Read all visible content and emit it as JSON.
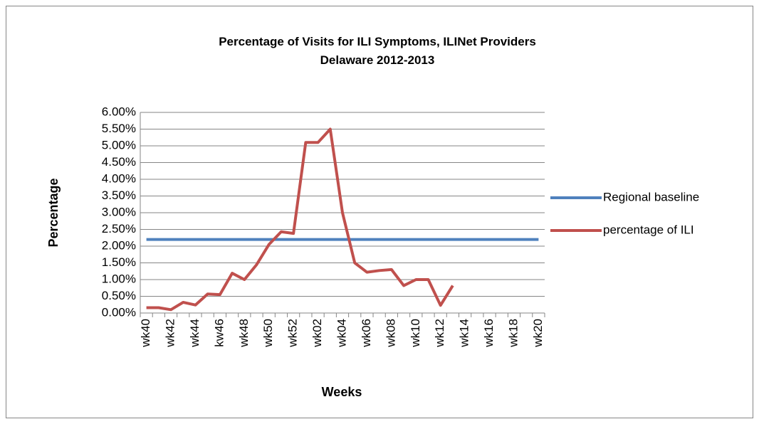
{
  "chart_data": {
    "type": "line",
    "title": [
      "Percentage of Visits for ILI Symptoms, ILINet Providers",
      "Delaware 2012-2013"
    ],
    "x_label": "Weeks",
    "y_label": "Percentage",
    "categories": [
      "wk40",
      null,
      "wk42",
      null,
      "wk44",
      null,
      "kw46",
      null,
      "wk48",
      null,
      "wk50",
      null,
      "wk52",
      null,
      "wk02",
      null,
      "wk04",
      null,
      "wk06",
      null,
      "wk08",
      null,
      "wk10",
      null,
      "wk12",
      null,
      "wk14",
      null,
      "wk16",
      null,
      "wk18",
      null,
      "wk20"
    ],
    "series": [
      {
        "name": "Regional baseline",
        "color": "#4f81bd",
        "values": [
          2.2,
          2.2,
          2.2,
          2.2,
          2.2,
          2.2,
          2.2,
          2.2,
          2.2,
          2.2,
          2.2,
          2.2,
          2.2,
          2.2,
          2.2,
          2.2,
          2.2,
          2.2,
          2.2,
          2.2,
          2.2,
          2.2,
          2.2,
          2.2,
          2.2,
          2.2,
          2.2,
          2.2,
          2.2,
          2.2,
          2.2,
          2.2,
          2.2
        ]
      },
      {
        "name": "percentage of ILI",
        "color": "#c0504d",
        "values": [
          0.16,
          0.16,
          0.1,
          0.32,
          0.24,
          0.57,
          0.55,
          1.19,
          1.0,
          1.45,
          2.05,
          2.43,
          2.38,
          5.1,
          5.1,
          5.5,
          3.0,
          1.5,
          1.22,
          1.27,
          1.3,
          0.82,
          1.0,
          1.0,
          0.23,
          0.82,
          null,
          null,
          null,
          null,
          null,
          null,
          null
        ]
      }
    ],
    "ylim": [
      0,
      6
    ],
    "yticks": [
      {
        "value": 0,
        "label": "0.00%"
      },
      {
        "value": 0.5,
        "label": "0.50%"
      },
      {
        "value": 1,
        "label": "1.00%"
      },
      {
        "value": 1.5,
        "label": "1.50%"
      },
      {
        "value": 2,
        "label": "2.00%"
      },
      {
        "value": 2.5,
        "label": "2.50%"
      },
      {
        "value": 3,
        "label": "3.00%"
      },
      {
        "value": 3.5,
        "label": "3.50%"
      },
      {
        "value": 4,
        "label": "4.00%"
      },
      {
        "value": 4.5,
        "label": "4.50%"
      },
      {
        "value": 5,
        "label": "5.00%"
      },
      {
        "value": 5.5,
        "label": "5.50%"
      },
      {
        "value": 6,
        "label": "6.00%"
      }
    ],
    "grid": true,
    "legend": "right"
  }
}
